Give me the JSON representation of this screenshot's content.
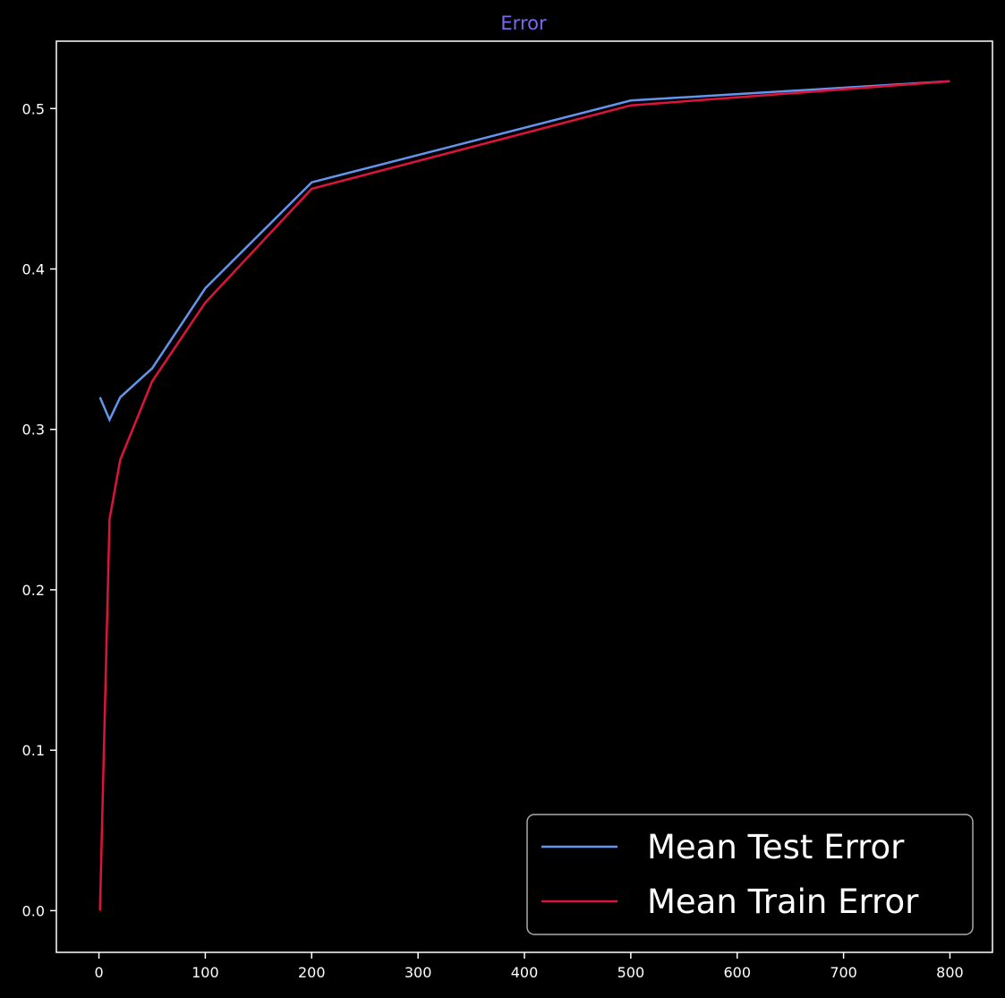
{
  "chart_data": {
    "type": "line",
    "title": "Error",
    "xlabel": "",
    "ylabel": "",
    "xlim": [
      -40,
      840
    ],
    "ylim": [
      -0.026,
      0.542
    ],
    "x_ticks": [
      0,
      100,
      200,
      300,
      400,
      500,
      600,
      700,
      800
    ],
    "y_ticks": [
      0.0,
      0.1,
      0.2,
      0.3,
      0.4,
      0.5
    ],
    "grid": false,
    "legend": "bottom-right",
    "series": [
      {
        "name": "Mean Test Error",
        "color": "#6495ED",
        "x": [
          1,
          10,
          20,
          50,
          100,
          200,
          500,
          800
        ],
        "y": [
          0.32,
          0.306,
          0.32,
          0.338,
          0.388,
          0.454,
          0.505,
          0.517
        ]
      },
      {
        "name": "Mean Train Error",
        "color": "#DC143C",
        "x": [
          1,
          10,
          20,
          50,
          100,
          200,
          500,
          800
        ],
        "y": [
          0.0,
          0.244,
          0.281,
          0.33,
          0.379,
          0.45,
          0.502,
          0.517
        ]
      }
    ],
    "colors": {
      "background": "#000000",
      "axes": "#FFFFFF",
      "title": "#7B68EE"
    }
  }
}
